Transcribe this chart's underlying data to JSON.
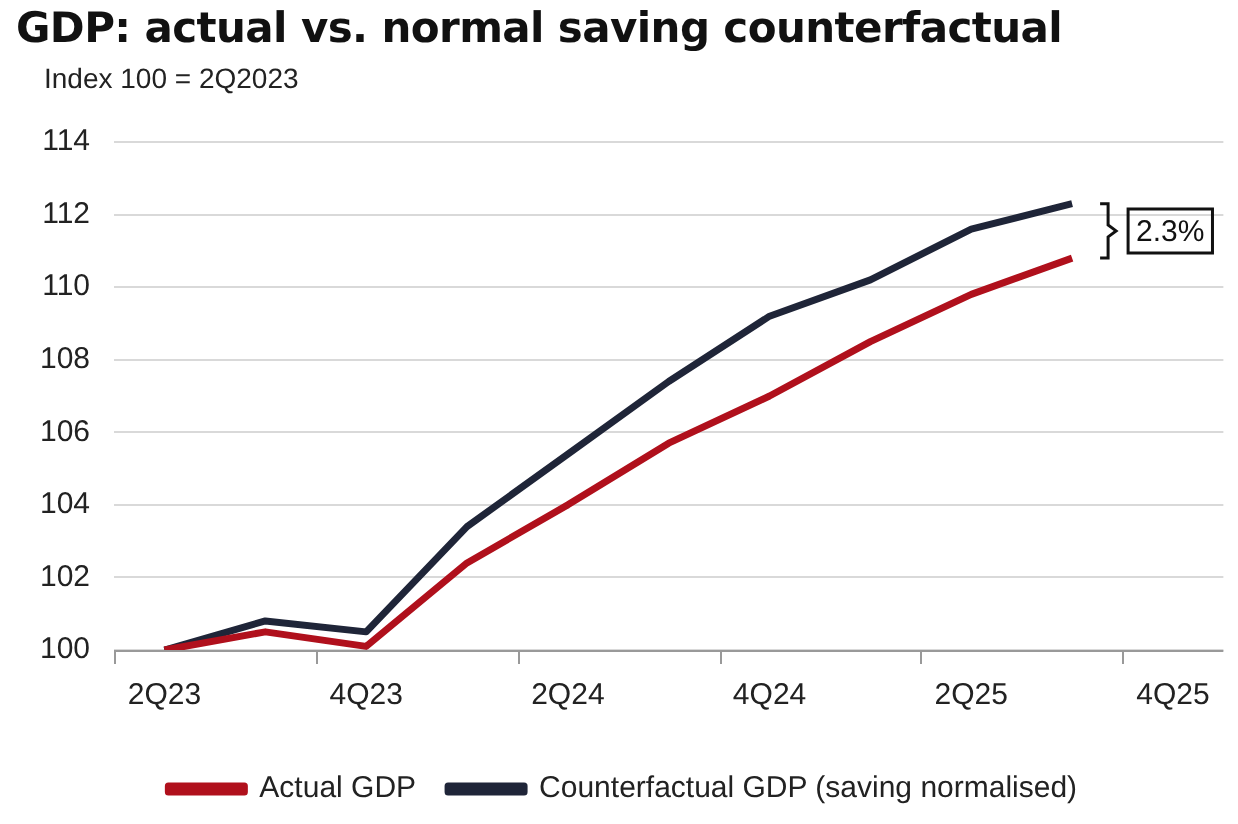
{
  "chart_data": {
    "type": "line",
    "title": "GDP: actual vs. normal saving counterfactual",
    "subtitle": "Index 100 = 2Q2023",
    "categories": [
      "2Q23",
      null,
      "4Q23",
      null,
      "2Q24",
      null,
      "4Q24",
      null,
      "2Q25",
      null,
      "4Q25"
    ],
    "series": [
      {
        "name": "Actual GDP",
        "color": "#b0101c",
        "values": [
          100,
          100.5,
          100.1,
          102.4,
          104.0,
          105.7,
          107.0,
          108.5,
          109.8,
          110.8,
          null
        ]
      },
      {
        "name": "Counterfactual GDP (saving normalised)",
        "color": "#1f2538",
        "values": [
          100,
          100.8,
          100.5,
          103.4,
          105.4,
          107.4,
          109.2,
          110.2,
          111.6,
          112.3,
          null
        ]
      }
    ],
    "ylim": [
      100,
      114
    ],
    "yticks": [
      100,
      102,
      104,
      106,
      108,
      110,
      112,
      114
    ],
    "grid": "y",
    "legend": "bottom",
    "annotations": [
      "2.3%"
    ]
  }
}
